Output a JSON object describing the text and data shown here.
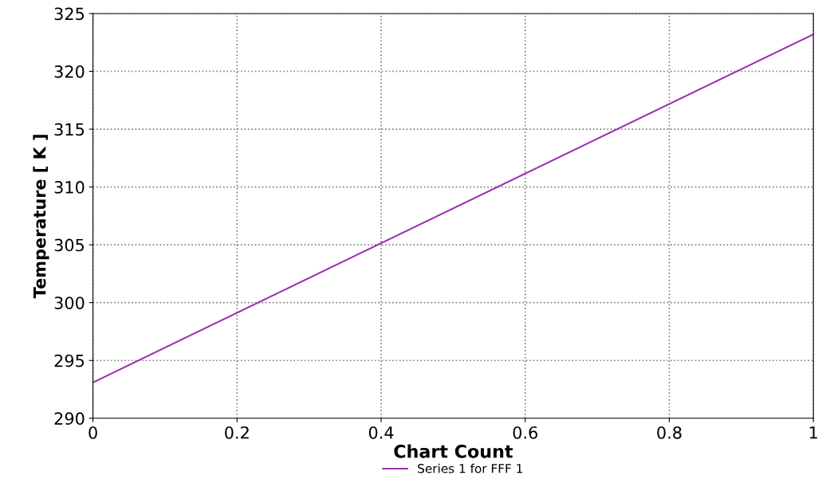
{
  "chart_data": {
    "type": "line",
    "xlabel": "Chart Count",
    "ylabel": "Temperature [ K ]",
    "x": [
      0,
      1
    ],
    "series": [
      {
        "name": "Series 1 for FFF 1",
        "color": "#9b30b0",
        "values": [
          293.1,
          323.2
        ]
      }
    ],
    "xlim": [
      0,
      1
    ],
    "xticks": [
      0,
      0.2,
      0.4,
      0.6,
      0.8,
      1
    ],
    "ylim": [
      290,
      325
    ],
    "yticks": [
      290,
      295,
      300,
      305,
      310,
      315,
      320,
      325
    ],
    "grid": true,
    "legend": "bottom",
    "marker": "none",
    "line_style": "solid"
  }
}
